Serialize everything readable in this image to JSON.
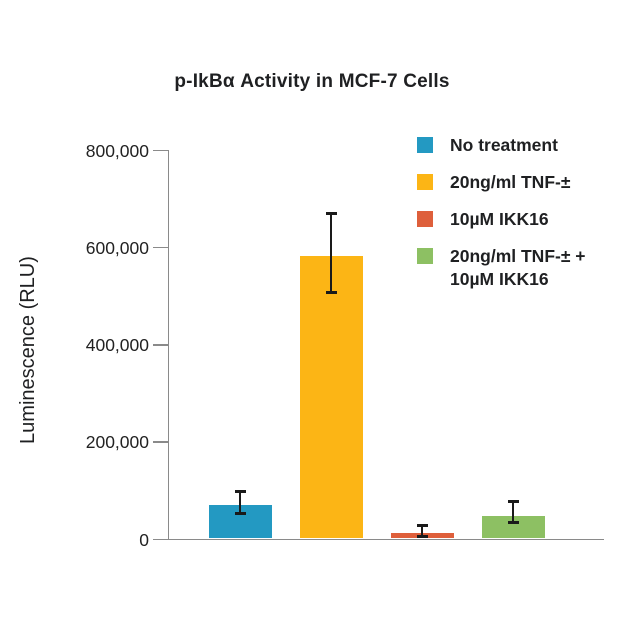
{
  "figure": {
    "background": "#ffffff"
  },
  "chart_data": {
    "type": "bar",
    "title": "p-IkBα Activity in MCF-7 Cells",
    "xlabel": "",
    "ylabel": "Luminescence (RLU)",
    "ylim": [
      0,
      800000
    ],
    "yticks": [
      {
        "value": 0,
        "label": "0"
      },
      {
        "value": 200000,
        "label": "200,000"
      },
      {
        "value": 400000,
        "label": "400,000"
      },
      {
        "value": 600000,
        "label": "600,000"
      },
      {
        "value": 800000,
        "label": "800,000"
      }
    ],
    "grid": false,
    "legend_position": "top-right",
    "axis_color": "#8a8a8a",
    "error_bar_color": "#1a1a1a",
    "bars": [
      {
        "id": "no-treatment",
        "category": "No treatment",
        "value": 68000,
        "error_low": 53000,
        "error_high": 95000,
        "color": "#2399C2"
      },
      {
        "id": "tnf",
        "category": "20ng/ml TNF-±",
        "value": 580000,
        "error_low": 506000,
        "error_high": 668000,
        "color": "#FCB515"
      },
      {
        "id": "ikk16",
        "category": "10µM IKK16",
        "value": 12000,
        "error_low": 6000,
        "error_high": 25000,
        "color": "#DE5F3B"
      },
      {
        "id": "tnf-ikk16",
        "category": "20ng/ml TNF-± + 10µM IKK16",
        "value": 47000,
        "error_low": 33000,
        "error_high": 76000,
        "color": "#8DC063"
      }
    ]
  },
  "legend": {
    "items": [
      {
        "id": "no-treatment",
        "color": "#2399C2",
        "lines": [
          "No treatment"
        ]
      },
      {
        "id": "tnf",
        "color": "#FCB515",
        "lines": [
          "20ng/ml TNF-±"
        ]
      },
      {
        "id": "ikk16",
        "color": "#DE5F3B",
        "lines": [
          "10µM IKK16"
        ]
      },
      {
        "id": "tnf-ikk16",
        "color": "#8DC063",
        "lines": [
          "20ng/ml TNF-± +",
          "10µM IKK16"
        ]
      }
    ]
  }
}
